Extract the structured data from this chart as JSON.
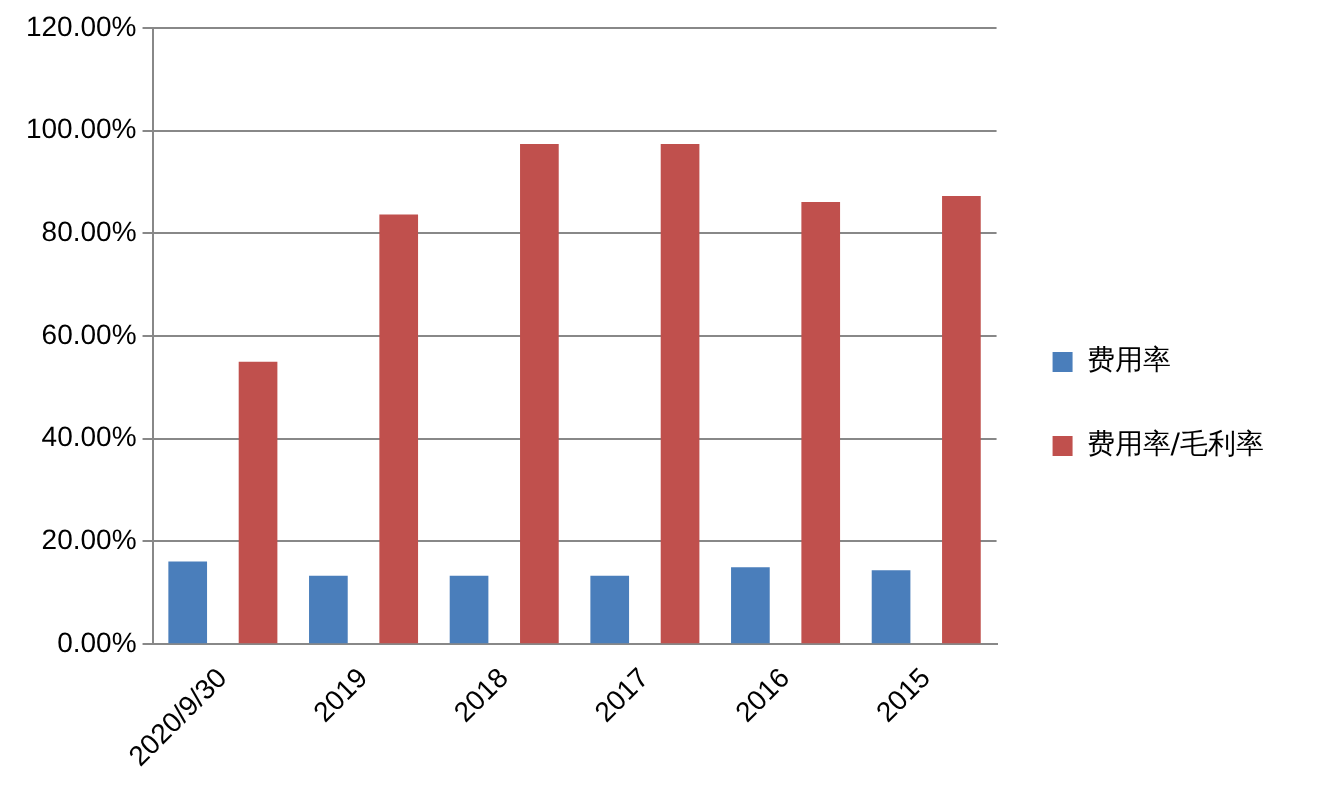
{
  "chart_data": {
    "type": "bar",
    "categories": [
      "2020/9/30",
      "2019",
      "2018",
      "2017",
      "2016",
      "2015"
    ],
    "series": [
      {
        "name": "费用率",
        "color": "#4a7ebb",
        "values": [
          16.1,
          13.3,
          13.3,
          13.3,
          15.0,
          14.4
        ]
      },
      {
        "name": "费用率/毛利率",
        "color": "#c0504d",
        "values": [
          55.0,
          83.7,
          97.4,
          97.4,
          86.1,
          87.3
        ]
      }
    ],
    "ylim": [
      0,
      120
    ],
    "yticks": [
      {
        "value": 0,
        "label": "0.00%"
      },
      {
        "value": 20,
        "label": "20.00%"
      },
      {
        "value": 40,
        "label": "40.00%"
      },
      {
        "value": 60,
        "label": "60.00%"
      },
      {
        "value": 80,
        "label": "80.00%"
      },
      {
        "value": 100,
        "label": "100.00%"
      },
      {
        "value": 120,
        "label": "120.00%"
      }
    ],
    "grid": "y",
    "legend": "right"
  }
}
